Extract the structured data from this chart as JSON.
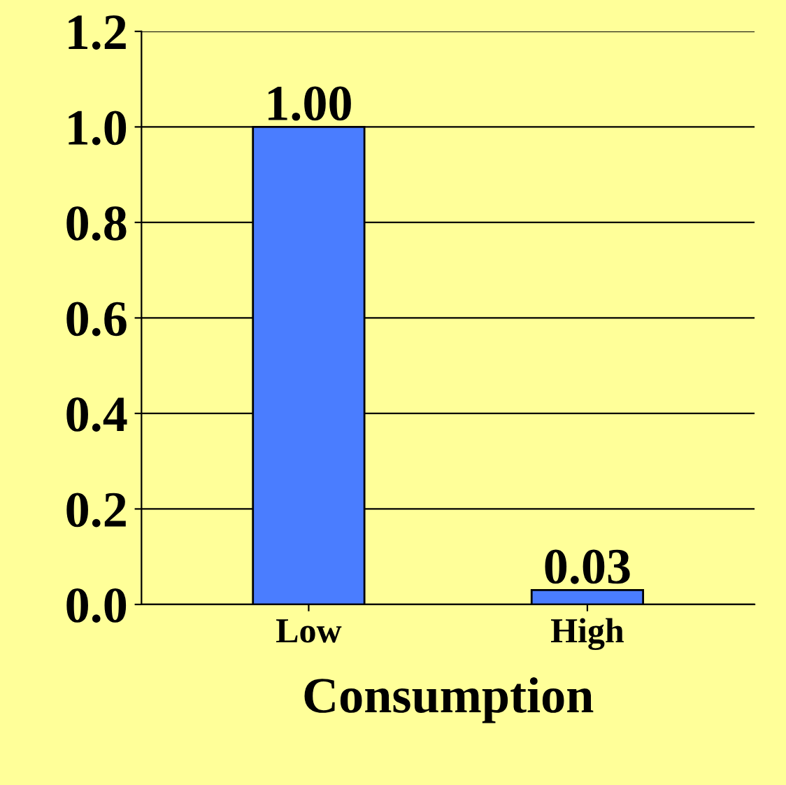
{
  "chart_data": {
    "type": "bar",
    "xlabel": "Consumption",
    "categories": [
      "Low",
      "High"
    ],
    "values": [
      1.0,
      0.03
    ],
    "value_labels": [
      "1.00",
      "0.03"
    ],
    "color": "#4a7dff",
    "ylim": [
      0,
      1.2
    ],
    "yticks": [
      {
        "value": 0,
        "label": "0.0"
      },
      {
        "value": 0.2,
        "label": "0.2"
      },
      {
        "value": 0.4,
        "label": "0.4"
      },
      {
        "value": 0.6,
        "label": "0.6"
      },
      {
        "value": 0.8,
        "label": "0.8"
      },
      {
        "value": 1.0,
        "label": "1.0"
      },
      {
        "value": 1.2,
        "label": "1.2"
      }
    ],
    "grid": "y"
  }
}
